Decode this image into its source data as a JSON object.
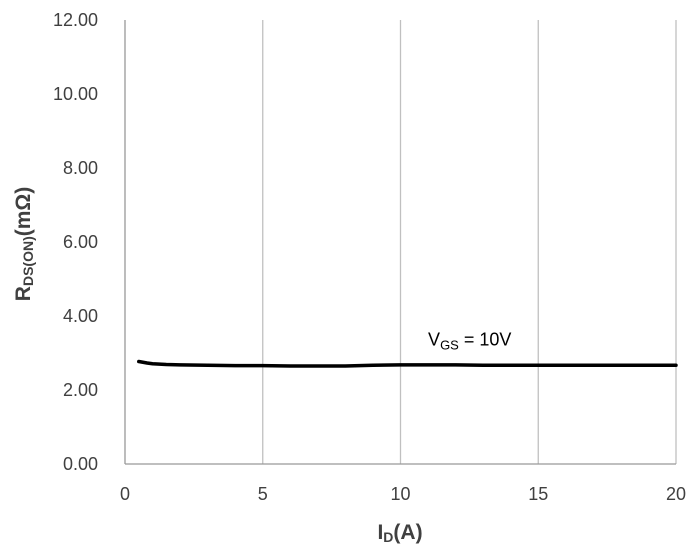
{
  "chart_data": {
    "type": "line",
    "xlabel": {
      "main": "I",
      "sub": "D",
      "unit": "(A)"
    },
    "ylabel": {
      "main": "R",
      "sub": "DS(ON)",
      "unit": "(mΩ)"
    },
    "xlim": [
      0,
      20
    ],
    "ylim": [
      0,
      12
    ],
    "x_ticks": [
      "0",
      "5",
      "10",
      "15",
      "20"
    ],
    "y_ticks": [
      "0.00",
      "2.00",
      "4.00",
      "6.00",
      "8.00",
      "10.00",
      "12.00"
    ],
    "grid": {
      "vertical": true,
      "horizontal": false
    },
    "series": [
      {
        "x": [
          0.5,
          0.8,
          1.0,
          1.5,
          2,
          3,
          4,
          5,
          6,
          7,
          8,
          9,
          10,
          11,
          12,
          13,
          14,
          15,
          16,
          17,
          18,
          19,
          20
        ],
        "y": [
          2.77,
          2.73,
          2.71,
          2.69,
          2.68,
          2.67,
          2.66,
          2.66,
          2.65,
          2.65,
          2.65,
          2.67,
          2.68,
          2.68,
          2.68,
          2.67,
          2.67,
          2.67,
          2.67,
          2.67,
          2.67,
          2.67,
          2.67
        ],
        "color": "#000000"
      }
    ],
    "annotation": {
      "main": "V",
      "sub": "GS",
      "text": " = 10V",
      "x": 11.0,
      "y": 3.2
    }
  },
  "colors": {
    "grid": "#c0c0c0",
    "axis": "#999999",
    "line": "#000000",
    "tick_text": "#404040"
  }
}
